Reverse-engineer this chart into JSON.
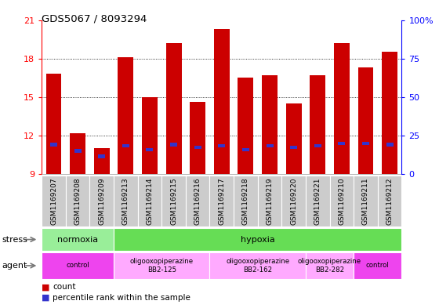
{
  "title": "GDS5067 / 8093294",
  "samples": [
    "GSM1169207",
    "GSM1169208",
    "GSM1169209",
    "GSM1169213",
    "GSM1169214",
    "GSM1169215",
    "GSM1169216",
    "GSM1169217",
    "GSM1169218",
    "GSM1169219",
    "GSM1169220",
    "GSM1169221",
    "GSM1169210",
    "GSM1169211",
    "GSM1169212"
  ],
  "bar_heights": [
    16.8,
    12.2,
    11.0,
    18.1,
    15.0,
    19.2,
    14.6,
    20.3,
    16.5,
    16.7,
    14.5,
    16.7,
    19.2,
    17.3,
    18.5
  ],
  "blue_positions": [
    11.15,
    10.65,
    10.25,
    11.05,
    10.75,
    11.15,
    10.95,
    11.05,
    10.75,
    11.05,
    10.95,
    11.05,
    11.25,
    11.25,
    11.15
  ],
  "ymin": 9,
  "ymax": 21,
  "yticks": [
    9,
    12,
    15,
    18,
    21
  ],
  "right_yticks": [
    0,
    25,
    50,
    75,
    100
  ],
  "bar_color": "#cc0000",
  "blue_color": "#3333cc",
  "stress_labels": [
    {
      "text": "normoxia",
      "start": 0,
      "end": 3,
      "color": "#99ee99"
    },
    {
      "text": "hypoxia",
      "start": 3,
      "end": 15,
      "color": "#66dd55"
    }
  ],
  "agent_labels": [
    {
      "text": "control",
      "start": 0,
      "end": 3,
      "color": "#ee44ee"
    },
    {
      "text": "oligooxopiperazine\nBB2-125",
      "start": 3,
      "end": 7,
      "color": "#ffaaff"
    },
    {
      "text": "oligooxopiperazine\nBB2-162",
      "start": 7,
      "end": 11,
      "color": "#ffaaff"
    },
    {
      "text": "oligooxopiperazine\nBB2-282",
      "start": 11,
      "end": 13,
      "color": "#ffaaff"
    },
    {
      "text": "control",
      "start": 13,
      "end": 15,
      "color": "#ee44ee"
    }
  ],
  "legend_count_color": "#cc0000",
  "legend_blue_color": "#3333cc",
  "tick_bg_color": "#cccccc",
  "tick_bg_color_alt": "#bbbbbb"
}
